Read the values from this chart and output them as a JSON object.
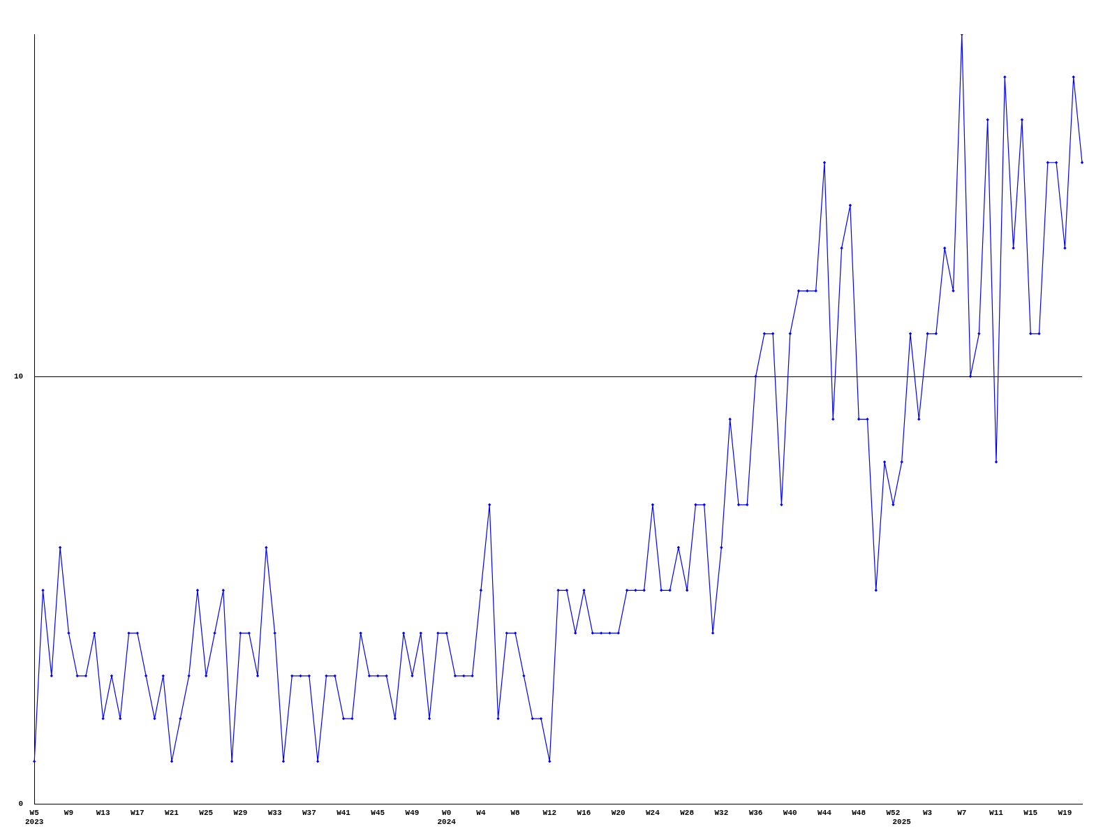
{
  "chart_data": {
    "type": "line",
    "categories": [
      "W5\n2023",
      null,
      null,
      null,
      "W9",
      null,
      null,
      null,
      "W13",
      null,
      null,
      null,
      "W17",
      null,
      null,
      null,
      "W21",
      null,
      null,
      null,
      "W25",
      null,
      null,
      null,
      "W29",
      null,
      null,
      null,
      "W33",
      null,
      null,
      null,
      "W37",
      null,
      null,
      null,
      "W41",
      null,
      null,
      null,
      "W45",
      null,
      null,
      null,
      "W49",
      null,
      null,
      null,
      "W0\n2024",
      null,
      null,
      null,
      "W4",
      null,
      null,
      null,
      "W8",
      null,
      null,
      null,
      "W12",
      null,
      null,
      null,
      "W16",
      null,
      null,
      null,
      "W20",
      null,
      null,
      null,
      "W24",
      null,
      null,
      null,
      "W28",
      null,
      null,
      null,
      "W32",
      null,
      null,
      null,
      "W36",
      null,
      null,
      null,
      "W40",
      null,
      null,
      null,
      "W44",
      null,
      null,
      null,
      "W48",
      null,
      null,
      null,
      "W52",
      "\n2025",
      null,
      null,
      "W3",
      null,
      null,
      null,
      "W7",
      null,
      null,
      null,
      "W11",
      null,
      null,
      null,
      "W15",
      null,
      null,
      null,
      "W19",
      null,
      null
    ],
    "series": [
      {
        "color": "#0000ff",
        "values": [
          1,
          5,
          3,
          6,
          4,
          3,
          3,
          4,
          2,
          3,
          2,
          4,
          4,
          3,
          2,
          3,
          1,
          2,
          3,
          5,
          3,
          4,
          5,
          1,
          4,
          4,
          3,
          6,
          4,
          1,
          3,
          3,
          3,
          1,
          3,
          3,
          2,
          2,
          4,
          3,
          3,
          3,
          2,
          4,
          3,
          4,
          2,
          4,
          4,
          3,
          3,
          3,
          5,
          7,
          2,
          4,
          4,
          3,
          2,
          2,
          1,
          5,
          5,
          4,
          5,
          4,
          4,
          4,
          4,
          5,
          5,
          5,
          7,
          5,
          5,
          6,
          5,
          7,
          7,
          4,
          6,
          9,
          7,
          7,
          10,
          11,
          11,
          7,
          11,
          12,
          12,
          12,
          15,
          9,
          13,
          14,
          9,
          9,
          5,
          8,
          7,
          8,
          11,
          9,
          11,
          11,
          13,
          12,
          18,
          10,
          11,
          16,
          8,
          17,
          13,
          16,
          11,
          11,
          15,
          15,
          13,
          17,
          15
        ]
      }
    ],
    "ylim": [
      0,
      18
    ],
    "yticks": [
      0,
      10
    ],
    "grid": "y",
    "marker": "diamond",
    "line_style": "solid",
    "legend": false
  }
}
